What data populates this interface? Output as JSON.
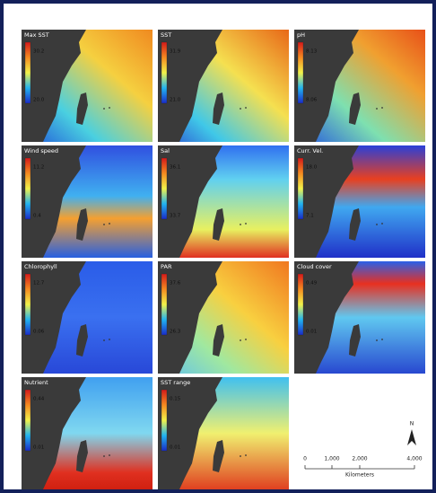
{
  "panels": [
    {
      "label": "Max SST",
      "max": "30.2",
      "min": "20.0"
    },
    {
      "label": "SST",
      "max": "31.9",
      "min": "21.0"
    },
    {
      "label": "pH",
      "max": "8.13",
      "min": "8.06"
    },
    {
      "label": "Wind speed",
      "max": "11.2",
      "min": "0.4"
    },
    {
      "label": "Sal",
      "max": "36.1",
      "min": "33.7"
    },
    {
      "label": "Curr. Vel.",
      "max": "18.0",
      "min": "7.1"
    },
    {
      "label": "Chlorophyll",
      "max": "12.7",
      "min": "0.06"
    },
    {
      "label": "PAR",
      "max": "37.6",
      "min": "26.3"
    },
    {
      "label": "Cloud cover",
      "max": "0.49",
      "min": "0.01"
    },
    {
      "label": "Nutrient",
      "max": "0.44",
      "min": "0.01"
    },
    {
      "label": "SST range",
      "max": "0.15",
      "min": "0.01"
    }
  ],
  "scale_bar": {
    "labels": [
      "0",
      "1,000",
      "2,000",
      "4,000"
    ],
    "unit": "Kilometers"
  },
  "north_arrow": "N"
}
